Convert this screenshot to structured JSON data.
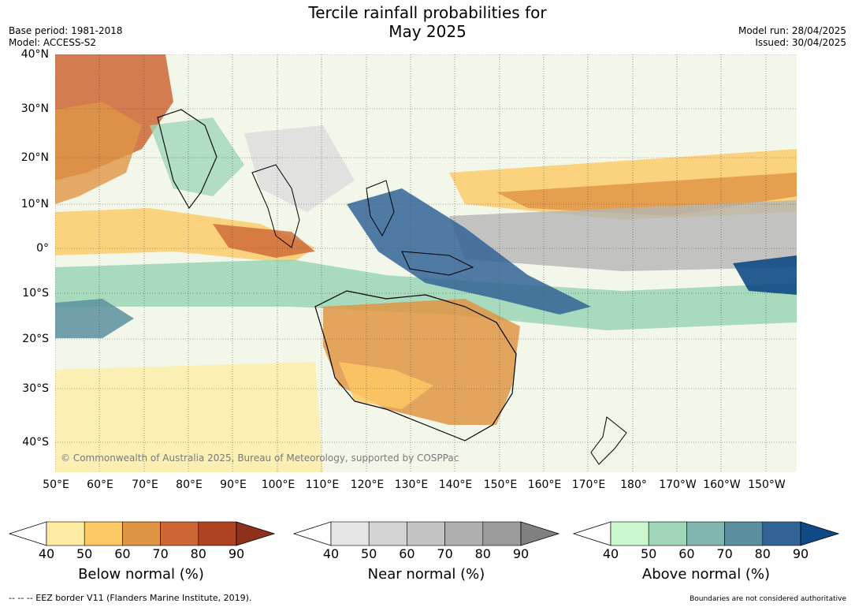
{
  "title": {
    "line1": "Tercile rainfall probabilities for",
    "line2": "May 2025"
  },
  "meta_left": [
    "Base period: 1981-2018",
    "Model: ACCESS-S2"
  ],
  "meta_right": [
    "Model run: 28/04/2025",
    "Issued: 30/04/2025"
  ],
  "lat_ticks": [
    "40°N",
    "30°N",
    "20°N",
    "10°N",
    "0°",
    "10°S",
    "20°S",
    "30°S",
    "40°S"
  ],
  "lon_ticks": [
    "50°E",
    "60°E",
    "70°E",
    "80°E",
    "90°E",
    "100°E",
    "110°E",
    "120°E",
    "130°E",
    "140°E",
    "150°E",
    "160°E",
    "170°E",
    "180°",
    "170°W",
    "160°W",
    "150°W"
  ],
  "copyright": "© Commonwealth of Australia 2025, Bureau of Meteorology, supported by COSPPac",
  "colorbars": [
    {
      "title": "Below normal (%)",
      "ticks": [
        "40",
        "50",
        "60",
        "70",
        "80",
        "90"
      ],
      "colors": [
        "#ffffff",
        "#fdeca1",
        "#fdc964",
        "#e09545",
        "#cd6634",
        "#ad4322",
        "#8e311c"
      ]
    },
    {
      "title": "Near normal (%)",
      "ticks": [
        "40",
        "50",
        "60",
        "70",
        "80",
        "90"
      ],
      "colors": [
        "#ffffff",
        "#e6e6e6",
        "#d4d4d4",
        "#c4c4c4",
        "#b0b0b0",
        "#9c9c9c",
        "#808080"
      ]
    },
    {
      "title": "Above normal (%)",
      "ticks": [
        "40",
        "50",
        "60",
        "70",
        "80",
        "90"
      ],
      "colors": [
        "#ffffff",
        "#cbf7cc",
        "#a0d6b8",
        "#80b6ad",
        "#5a90a0",
        "#336496",
        "#0f4a86"
      ]
    }
  ],
  "footer_left": "--  --  -- EEZ border V11 (Flanders Marine Institute, 2019).",
  "footer_right": "Boundaries are not considered authoritative"
}
